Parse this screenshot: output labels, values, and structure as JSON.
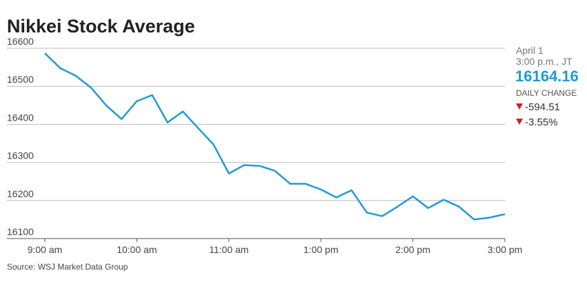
{
  "chart_data": {
    "type": "line",
    "title": "Nikkei Stock Average",
    "source": "Source: WSJ Market Data Group",
    "categories": [
      "9:00 am",
      null,
      null,
      null,
      null,
      null,
      "10:00 am",
      null,
      null,
      null,
      null,
      null,
      "11:00 am",
      null,
      null,
      null,
      null,
      null,
      "1:00 pm",
      null,
      null,
      null,
      null,
      null,
      "2:00 pm",
      null,
      null,
      null,
      null,
      null,
      "3:00 pm"
    ],
    "series": [
      {
        "name": "Nikkei",
        "color": "#1f9ad6",
        "values": [
          16587,
          16548,
          16528,
          16497,
          16450,
          16414,
          16461,
          16477,
          16405,
          16434,
          16390,
          16347,
          16271,
          16293,
          16291,
          16278,
          16244,
          16244,
          16229,
          16208,
          16227,
          16168,
          16159,
          16184,
          16211,
          16180,
          16202,
          16184,
          16150,
          16155,
          16164.16
        ]
      }
    ],
    "ylim": [
      16100,
      16600
    ],
    "yticks": [
      16100,
      16200,
      16300,
      16400,
      16500,
      16600
    ],
    "grid": true
  },
  "summary": {
    "date": "April 1",
    "time": "3:00 p.m., JT",
    "last": 16164.16,
    "change_label": "DAILY CHANGE",
    "change": -594.51,
    "change_pct": "-3.55%"
  }
}
